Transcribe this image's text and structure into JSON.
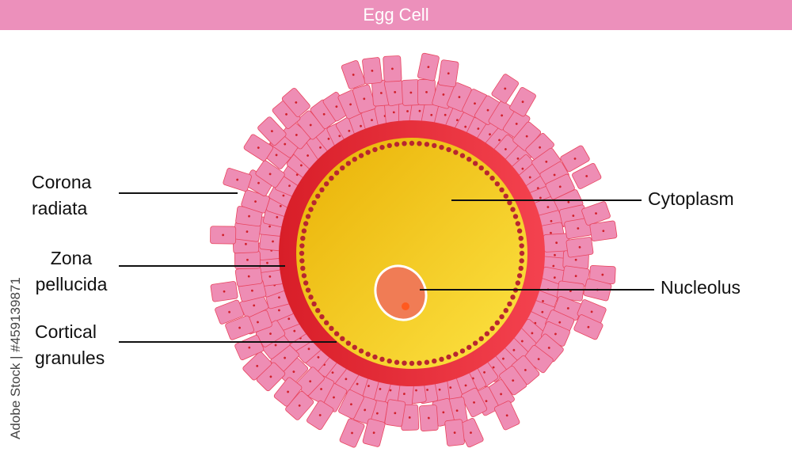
{
  "title": "Egg Cell",
  "labels": {
    "corona_radiata": [
      "Corona",
      "radiata"
    ],
    "zona_pellucida": [
      "Zona",
      "pellucida"
    ],
    "cortical_granules": [
      "Cortical",
      "granules"
    ],
    "cytoplasm": "Cytoplasm",
    "nucleolus": "Nucleolus"
  },
  "watermark": "Adobe Stock | #459139871",
  "colors": {
    "title_bar": "#ec90bb",
    "corona_cell_fill": "#ee8db4",
    "corona_cell_stroke": "#e8455f",
    "zona_pellucida": "#e0282f",
    "cytoplasm": "#f4c81a",
    "cortical_granule": "#b8262f",
    "nucleus": "#f07c55",
    "nucleolus": "#ff5a1f"
  }
}
